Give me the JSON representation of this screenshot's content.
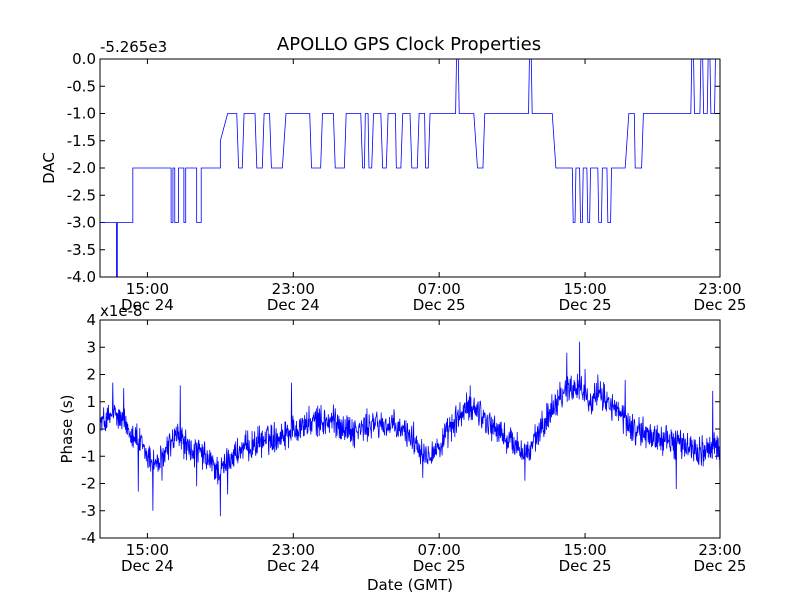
{
  "chart_data": [
    {
      "type": "line",
      "title": "APOLLO GPS Clock Properties",
      "ylabel": "DAC",
      "offset_text": "-5.265e3",
      "xlim": [
        0,
        34
      ],
      "ylim": [
        -4.0,
        0.0
      ],
      "yticks": [
        "0.0",
        "-0.5",
        "-1.0",
        "-1.5",
        "-2.0",
        "-2.5",
        "-3.0",
        "-3.5",
        "-4.0"
      ],
      "xticks": [
        {
          "x": 2.6,
          "time": "15:00",
          "date": "Dec 24"
        },
        {
          "x": 10.6,
          "time": "23:00",
          "date": "Dec 24"
        },
        {
          "x": 18.6,
          "time": "07:00",
          "date": "Dec 25"
        },
        {
          "x": 26.6,
          "time": "15:00",
          "date": "Dec 25"
        },
        {
          "x": 34.0,
          "time": "23:00",
          "date": "Dec 25"
        }
      ],
      "series": [
        {
          "color": "#0000ff",
          "points": [
            [
              0.0,
              -3.0
            ],
            [
              0.9,
              -3.0
            ],
            [
              0.9,
              -4.0
            ],
            [
              0.95,
              -4.0
            ],
            [
              0.95,
              -3.0
            ],
            [
              1.8,
              -3.0
            ],
            [
              1.8,
              -2.0
            ],
            [
              3.9,
              -2.0
            ],
            [
              3.9,
              -3.0
            ],
            [
              4.0,
              -3.0
            ],
            [
              4.0,
              -2.0
            ],
            [
              4.1,
              -2.0
            ],
            [
              4.1,
              -3.0
            ],
            [
              4.3,
              -3.0
            ],
            [
              4.3,
              -2.0
            ],
            [
              4.6,
              -2.0
            ],
            [
              4.6,
              -3.0
            ],
            [
              4.7,
              -3.0
            ],
            [
              4.7,
              -2.0
            ],
            [
              5.3,
              -2.0
            ],
            [
              5.3,
              -3.0
            ],
            [
              5.55,
              -3.0
            ],
            [
              5.55,
              -2.0
            ],
            [
              6.6,
              -2.0
            ],
            [
              6.6,
              -1.5
            ],
            [
              7.0,
              -1.0
            ],
            [
              7.5,
              -1.0
            ],
            [
              7.6,
              -2.0
            ],
            [
              7.8,
              -2.0
            ],
            [
              7.9,
              -1.0
            ],
            [
              8.5,
              -1.0
            ],
            [
              8.6,
              -2.0
            ],
            [
              8.9,
              -2.0
            ],
            [
              9.0,
              -1.0
            ],
            [
              9.3,
              -1.0
            ],
            [
              9.4,
              -2.0
            ],
            [
              10.0,
              -2.0
            ],
            [
              10.2,
              -1.0
            ],
            [
              11.5,
              -1.0
            ],
            [
              11.6,
              -2.0
            ],
            [
              12.1,
              -2.0
            ],
            [
              12.2,
              -1.0
            ],
            [
              12.8,
              -1.0
            ],
            [
              12.9,
              -2.0
            ],
            [
              13.4,
              -2.0
            ],
            [
              13.5,
              -1.0
            ],
            [
              14.3,
              -1.0
            ],
            [
              14.4,
              -2.0
            ],
            [
              14.5,
              -2.0
            ],
            [
              14.55,
              -1.0
            ],
            [
              14.7,
              -1.0
            ],
            [
              14.75,
              -2.0
            ],
            [
              14.9,
              -2.0
            ],
            [
              15.0,
              -1.0
            ],
            [
              15.4,
              -1.0
            ],
            [
              15.5,
              -2.0
            ],
            [
              15.7,
              -2.0
            ],
            [
              15.8,
              -1.0
            ],
            [
              16.2,
              -1.0
            ],
            [
              16.25,
              -2.0
            ],
            [
              16.5,
              -2.0
            ],
            [
              16.6,
              -1.0
            ],
            [
              17.0,
              -1.0
            ],
            [
              17.1,
              -2.0
            ],
            [
              17.4,
              -2.0
            ],
            [
              17.5,
              -1.0
            ],
            [
              17.8,
              -1.0
            ],
            [
              17.85,
              -2.0
            ],
            [
              18.0,
              -2.0
            ],
            [
              18.1,
              -1.0
            ],
            [
              19.5,
              -1.0
            ],
            [
              19.55,
              -0.0
            ],
            [
              19.65,
              -0.0
            ],
            [
              19.7,
              -1.0
            ],
            [
              20.5,
              -1.0
            ],
            [
              20.7,
              -2.0
            ],
            [
              21.0,
              -2.0
            ],
            [
              21.1,
              -1.0
            ],
            [
              23.5,
              -1.0
            ],
            [
              23.55,
              0.0
            ],
            [
              23.65,
              0.0
            ],
            [
              23.7,
              -1.0
            ],
            [
              24.8,
              -1.0
            ],
            [
              25.0,
              -2.0
            ],
            [
              25.9,
              -2.0
            ],
            [
              25.95,
              -3.0
            ],
            [
              26.05,
              -3.0
            ],
            [
              26.1,
              -2.0
            ],
            [
              26.3,
              -2.0
            ],
            [
              26.35,
              -3.0
            ],
            [
              26.45,
              -3.0
            ],
            [
              26.5,
              -2.0
            ],
            [
              26.7,
              -2.0
            ],
            [
              26.75,
              -3.0
            ],
            [
              26.85,
              -3.0
            ],
            [
              26.9,
              -2.0
            ],
            [
              27.3,
              -2.0
            ],
            [
              27.35,
              -3.0
            ],
            [
              27.5,
              -3.0
            ],
            [
              27.55,
              -2.0
            ],
            [
              27.8,
              -2.0
            ],
            [
              27.85,
              -3.0
            ],
            [
              28.0,
              -3.0
            ],
            [
              28.05,
              -2.0
            ],
            [
              28.8,
              -2.0
            ],
            [
              29.0,
              -1.0
            ],
            [
              29.3,
              -1.0
            ],
            [
              29.35,
              -2.0
            ],
            [
              29.7,
              -2.0
            ],
            [
              29.8,
              -1.0
            ],
            [
              32.4,
              -1.0
            ],
            [
              32.45,
              0.0
            ],
            [
              32.55,
              0.0
            ],
            [
              32.6,
              -1.0
            ],
            [
              32.9,
              -1.0
            ],
            [
              32.95,
              0.0
            ],
            [
              33.05,
              0.0
            ],
            [
              33.1,
              -1.0
            ],
            [
              33.3,
              -1.0
            ],
            [
              33.35,
              0.0
            ],
            [
              33.45,
              0.0
            ],
            [
              33.5,
              -1.0
            ],
            [
              33.7,
              -1.0
            ],
            [
              33.75,
              0.0
            ],
            [
              34.0,
              0.0
            ]
          ]
        }
      ]
    },
    {
      "type": "line",
      "ylabel": "Phase (s)",
      "xlabel": "Date (GMT)",
      "offset_text": "x1e-8",
      "xlim": [
        0,
        34
      ],
      "ylim": [
        -4,
        4
      ],
      "yticks": [
        "4",
        "3",
        "2",
        "1",
        "0",
        "-1",
        "-2",
        "-3",
        "-4"
      ],
      "xticks": [
        {
          "x": 2.6,
          "time": "15:00",
          "date": "Dec 24"
        },
        {
          "x": 10.6,
          "time": "23:00",
          "date": "Dec 24"
        },
        {
          "x": 18.6,
          "time": "07:00",
          "date": "Dec 25"
        },
        {
          "x": 26.6,
          "time": "15:00",
          "date": "Dec 25"
        },
        {
          "x": 34.0,
          "time": "23:00",
          "date": "Dec 25"
        }
      ],
      "series": [
        {
          "color": "#0000ff",
          "step": 0.02,
          "noise": 0.45,
          "control": [
            [
              0.0,
              0.2
            ],
            [
              0.8,
              0.5
            ],
            [
              1.2,
              0.3
            ],
            [
              2.0,
              -0.3
            ],
            [
              2.6,
              -1.0
            ],
            [
              3.2,
              -1.3
            ],
            [
              3.8,
              -0.6
            ],
            [
              4.3,
              -0.2
            ],
            [
              4.9,
              -0.8
            ],
            [
              5.5,
              -0.9
            ],
            [
              6.0,
              -1.2
            ],
            [
              6.6,
              -1.6
            ],
            [
              7.2,
              -1.0
            ],
            [
              8.0,
              -0.7
            ],
            [
              9.0,
              -0.4
            ],
            [
              10.0,
              -0.2
            ],
            [
              11.0,
              0.1
            ],
            [
              12.0,
              0.3
            ],
            [
              13.0,
              0.2
            ],
            [
              14.0,
              -0.1
            ],
            [
              15.0,
              0.2
            ],
            [
              16.0,
              0.1
            ],
            [
              17.0,
              -0.2
            ],
            [
              17.8,
              -0.9
            ],
            [
              18.6,
              -0.7
            ],
            [
              19.4,
              0.2
            ],
            [
              20.0,
              0.7
            ],
            [
              20.6,
              0.8
            ],
            [
              21.2,
              0.3
            ],
            [
              22.0,
              -0.2
            ],
            [
              22.8,
              -0.6
            ],
            [
              23.5,
              -0.9
            ],
            [
              24.2,
              0.0
            ],
            [
              24.8,
              0.8
            ],
            [
              25.4,
              1.4
            ],
            [
              26.2,
              1.6
            ],
            [
              27.0,
              1.1
            ],
            [
              27.6,
              1.2
            ],
            [
              28.4,
              0.6
            ],
            [
              29.2,
              0.0
            ],
            [
              30.0,
              -0.2
            ],
            [
              31.0,
              -0.4
            ],
            [
              32.0,
              -0.6
            ],
            [
              33.0,
              -0.8
            ],
            [
              34.0,
              -0.7
            ]
          ],
          "spikes": [
            [
              0.7,
              1.7
            ],
            [
              1.3,
              1.5
            ],
            [
              2.1,
              -2.3
            ],
            [
              2.9,
              -3.0
            ],
            [
              3.4,
              -1.9
            ],
            [
              4.4,
              1.6
            ],
            [
              5.3,
              -2.1
            ],
            [
              6.6,
              -3.2
            ],
            [
              7.0,
              -2.4
            ],
            [
              10.5,
              1.7
            ],
            [
              12.8,
              0.9
            ],
            [
              17.7,
              -1.8
            ],
            [
              20.3,
              1.6
            ],
            [
              23.3,
              -1.9
            ],
            [
              25.6,
              2.8
            ],
            [
              26.3,
              3.2
            ],
            [
              26.6,
              2.2
            ],
            [
              27.3,
              2.0
            ],
            [
              28.8,
              1.8
            ],
            [
              31.6,
              -2.2
            ],
            [
              33.6,
              1.4
            ],
            [
              34.0,
              -1.9
            ]
          ]
        }
      ]
    }
  ]
}
